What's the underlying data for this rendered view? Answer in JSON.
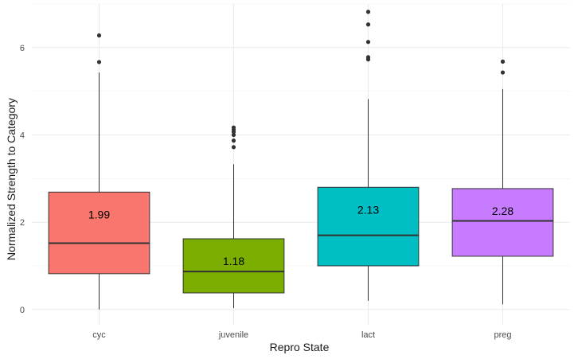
{
  "chart_data": {
    "type": "boxplot",
    "xlabel": "Repro State",
    "ylabel": "Normalized Strength to Category",
    "ylim": [
      -0.35,
      7.0
    ],
    "yticks": [
      0,
      2,
      4,
      6
    ],
    "grid": true,
    "legend": "none",
    "categories": [
      "cyc",
      "juvenile",
      "lact",
      "preg"
    ],
    "boxes": [
      {
        "category": "cyc",
        "color": "#F8766D",
        "whisker_low": 0.0,
        "q1": 0.82,
        "median": 1.52,
        "q3": 2.69,
        "whisker_high": 5.43,
        "outliers": [
          5.67,
          6.28
        ],
        "mean_label": "1.99",
        "mean": 1.99
      },
      {
        "category": "juvenile",
        "color": "#7CAE00",
        "whisker_low": 0.03,
        "q1": 0.38,
        "median": 0.87,
        "q3": 1.62,
        "whisker_high": 3.33,
        "outliers": [
          3.72,
          3.87,
          4.0,
          4.07,
          4.12,
          4.17
        ],
        "mean_label": "1.18",
        "mean": 1.18
      },
      {
        "category": "lact",
        "color": "#00BFC4",
        "whisker_low": 0.2,
        "q1": 1.0,
        "median": 1.7,
        "q3": 2.8,
        "whisker_high": 4.82,
        "outliers": [
          5.73,
          5.78,
          6.13,
          6.53,
          6.82
        ],
        "mean_label": "2.13",
        "mean": 2.13
      },
      {
        "category": "preg",
        "color": "#C77CFF",
        "whisker_low": 0.12,
        "q1": 1.22,
        "median": 2.03,
        "q3": 2.77,
        "whisker_high": 5.05,
        "outliers": [
          5.43,
          5.68
        ],
        "mean_label": "2.28",
        "mean": 2.28
      }
    ]
  }
}
